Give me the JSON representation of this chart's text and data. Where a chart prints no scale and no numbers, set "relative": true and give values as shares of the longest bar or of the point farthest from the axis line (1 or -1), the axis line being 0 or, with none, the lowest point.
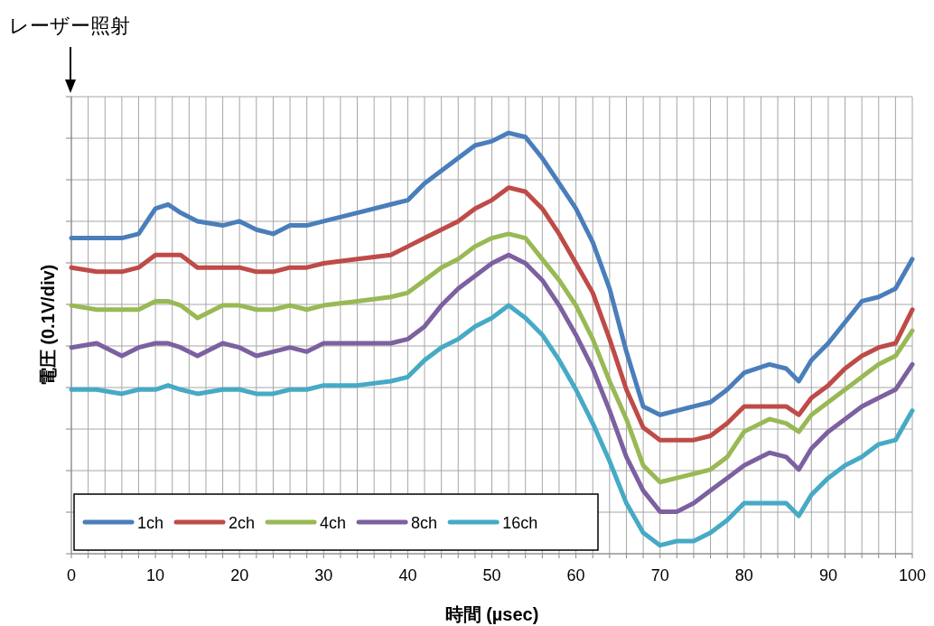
{
  "chart_data": {
    "type": "line",
    "relative": true,
    "xlabel": "時間 (µsec)",
    "ylabel": "電圧 (0.1V/div)",
    "annotations": [
      "レーザー照射"
    ],
    "grid": true,
    "legend": "bottom left",
    "marker": "none",
    "line_style": "solid",
    "xlim": [
      0,
      100
    ],
    "xticks": [
      0,
      {
        "value": 2,
        "label": null
      },
      {
        "value": 4,
        "label": null
      },
      {
        "value": 6,
        "label": null
      },
      {
        "value": 8,
        "label": null
      },
      10,
      {
        "value": 12,
        "label": null
      },
      {
        "value": 14,
        "label": null
      },
      {
        "value": 16,
        "label": null
      },
      {
        "value": 18,
        "label": null
      },
      20,
      {
        "value": 22,
        "label": null
      },
      {
        "value": 24,
        "label": null
      },
      {
        "value": 26,
        "label": null
      },
      {
        "value": 28,
        "label": null
      },
      30,
      {
        "value": 32,
        "label": null
      },
      {
        "value": 34,
        "label": null
      },
      {
        "value": 36,
        "label": null
      },
      {
        "value": 38,
        "label": null
      },
      40,
      {
        "value": 42,
        "label": null
      },
      {
        "value": 44,
        "label": null
      },
      {
        "value": 46,
        "label": null
      },
      {
        "value": 48,
        "label": null
      },
      50,
      {
        "value": 52,
        "label": null
      },
      {
        "value": 54,
        "label": null
      },
      {
        "value": 56,
        "label": null
      },
      {
        "value": 58,
        "label": null
      },
      60,
      {
        "value": 62,
        "label": null
      },
      {
        "value": 64,
        "label": null
      },
      {
        "value": 66,
        "label": null
      },
      {
        "value": 68,
        "label": null
      },
      70,
      {
        "value": 72,
        "label": null
      },
      {
        "value": 74,
        "label": null
      },
      {
        "value": 76,
        "label": null
      },
      {
        "value": 78,
        "label": null
      },
      80,
      {
        "value": 82,
        "label": null
      },
      {
        "value": 84,
        "label": null
      },
      {
        "value": 86,
        "label": null
      },
      {
        "value": 88,
        "label": null
      },
      90,
      {
        "value": 92,
        "label": null
      },
      {
        "value": 94,
        "label": null
      },
      {
        "value": 96,
        "label": null
      },
      {
        "value": 98,
        "label": null
      },
      100
    ],
    "x": [
      0,
      3,
      6,
      8,
      10,
      11.5,
      13,
      15,
      18,
      20,
      22,
      24,
      26,
      28,
      30,
      34,
      38,
      40,
      42,
      44,
      46,
      48,
      50,
      52,
      54,
      56,
      58,
      60,
      62,
      64,
      66,
      68,
      70,
      72,
      74,
      76,
      78,
      80,
      83,
      85,
      86.5,
      88,
      90,
      92,
      94,
      96,
      98,
      100
    ],
    "series": [
      {
        "name": "1ch",
        "color": "#4a7ebb",
        "values": [
          0.75,
          0.75,
          0.75,
          0.76,
          0.82,
          0.83,
          0.81,
          0.79,
          0.78,
          0.79,
          0.77,
          0.76,
          0.78,
          0.78,
          0.79,
          0.81,
          0.83,
          0.84,
          0.88,
          0.91,
          0.94,
          0.97,
          0.98,
          1,
          0.99,
          0.94,
          0.88,
          0.82,
          0.74,
          0.63,
          0.48,
          0.35,
          0.33,
          0.34,
          0.35,
          0.36,
          0.39,
          0.43,
          0.45,
          0.44,
          0.41,
          0.46,
          0.5,
          0.55,
          0.6,
          0.61,
          0.63,
          0.7
        ]
      },
      {
        "name": "2ch",
        "color": "#be4b48",
        "values": [
          0.68,
          0.67,
          0.67,
          0.68,
          0.71,
          0.71,
          0.71,
          0.68,
          0.68,
          0.68,
          0.67,
          0.67,
          0.68,
          0.68,
          0.69,
          0.7,
          0.71,
          0.73,
          0.75,
          0.77,
          0.79,
          0.82,
          0.84,
          0.87,
          0.86,
          0.82,
          0.76,
          0.69,
          0.62,
          0.51,
          0.39,
          0.3,
          0.27,
          0.27,
          0.27,
          0.28,
          0.31,
          0.35,
          0.35,
          0.35,
          0.33,
          0.37,
          0.4,
          0.44,
          0.47,
          0.49,
          0.5,
          0.58
        ]
      },
      {
        "name": "4ch",
        "color": "#98b954",
        "values": [
          0.59,
          0.58,
          0.58,
          0.58,
          0.6,
          0.6,
          0.59,
          0.56,
          0.59,
          0.59,
          0.58,
          0.58,
          0.59,
          0.58,
          0.59,
          0.6,
          0.61,
          0.62,
          0.65,
          0.68,
          0.7,
          0.73,
          0.75,
          0.76,
          0.75,
          0.7,
          0.65,
          0.59,
          0.51,
          0.41,
          0.32,
          0.21,
          0.17,
          0.18,
          0.19,
          0.2,
          0.23,
          0.29,
          0.32,
          0.31,
          0.29,
          0.33,
          0.36,
          0.39,
          0.42,
          0.45,
          0.47,
          0.53
        ]
      },
      {
        "name": "8ch",
        "color": "#7d60a0",
        "values": [
          0.49,
          0.5,
          0.47,
          0.49,
          0.5,
          0.5,
          0.49,
          0.47,
          0.5,
          0.49,
          0.47,
          0.48,
          0.49,
          0.48,
          0.5,
          0.5,
          0.5,
          0.51,
          0.54,
          0.59,
          0.63,
          0.66,
          0.69,
          0.71,
          0.69,
          0.65,
          0.59,
          0.52,
          0.44,
          0.34,
          0.23,
          0.15,
          0.1,
          0.1,
          0.12,
          0.15,
          0.18,
          0.21,
          0.24,
          0.23,
          0.2,
          0.25,
          0.29,
          0.32,
          0.35,
          0.37,
          0.39,
          0.45
        ]
      },
      {
        "name": "16ch",
        "color": "#46aac5",
        "values": [
          0.39,
          0.39,
          0.38,
          0.39,
          0.39,
          0.4,
          0.39,
          0.38,
          0.39,
          0.39,
          0.38,
          0.38,
          0.39,
          0.39,
          0.4,
          0.4,
          0.41,
          0.42,
          0.46,
          0.49,
          0.51,
          0.54,
          0.56,
          0.59,
          0.56,
          0.52,
          0.46,
          0.39,
          0.31,
          0.22,
          0.12,
          0.05,
          0.02,
          0.03,
          0.03,
          0.05,
          0.08,
          0.12,
          0.12,
          0.12,
          0.09,
          0.14,
          0.18,
          0.21,
          0.23,
          0.26,
          0.27,
          0.34
        ]
      }
    ]
  }
}
